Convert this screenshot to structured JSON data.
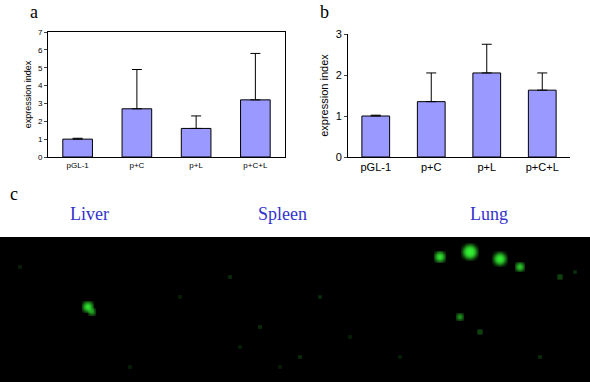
{
  "chart_data": [
    {
      "type": "bar",
      "panel": "a",
      "y_label": "expression index",
      "categories": [
        "pGL-1",
        "p+C",
        "p+L",
        "p+C+L"
      ],
      "values": [
        1.0,
        2.7,
        1.6,
        3.2
      ],
      "errors": [
        0.05,
        2.2,
        0.7,
        2.6
      ],
      "color": "#9999ff",
      "ylim": [
        0,
        7
      ],
      "yticks": [
        0,
        1,
        2,
        3,
        4,
        5,
        6,
        7
      ],
      "grid": false
    },
    {
      "type": "bar",
      "panel": "b",
      "y_label": "expression index",
      "categories": [
        "pGL-1",
        "p+C",
        "p+L",
        "p+C+L"
      ],
      "values": [
        1.0,
        1.35,
        2.05,
        1.63
      ],
      "errors": [
        0.02,
        0.7,
        0.7,
        0.42
      ],
      "color": "#9999ff",
      "ylim": [
        0,
        3
      ],
      "yticks": [
        0,
        1,
        2,
        3
      ],
      "grid": false
    }
  ],
  "image_panel": {
    "panel": "c",
    "labels": [
      "Liver",
      "Spleen",
      "Lung"
    ]
  }
}
